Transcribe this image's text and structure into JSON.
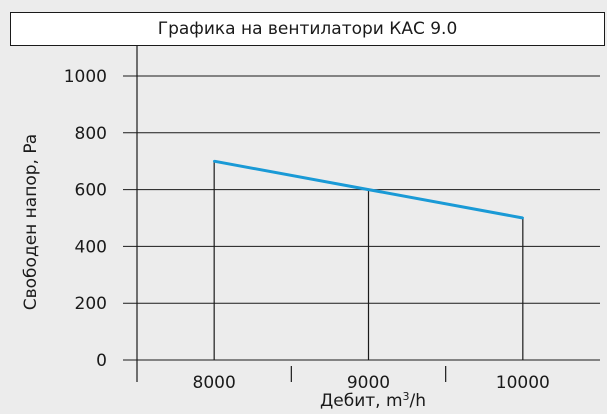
{
  "chart_data": {
    "type": "line",
    "title": "Графика на вентилатори КАС 9.0",
    "xlabel_main": "Дебит, m",
    "xlabel_sup": "3",
    "xlabel_unit": "/h",
    "ylabel": "Свободен напор, Pa",
    "x_ticks": [
      "8000",
      "9000",
      "10000"
    ],
    "y_ticks": [
      "0",
      "200",
      "400",
      "600",
      "800",
      "1000"
    ],
    "xlim": [
      7500,
      10500
    ],
    "ylim": [
      0,
      1000
    ],
    "series": [
      {
        "x": [
          8000,
          9000,
          10000
        ],
        "y": [
          700,
          600,
          500
        ]
      }
    ],
    "grid": "horizontal",
    "colors": {
      "line": "#1a9ad6",
      "panel": "#ececec",
      "axis": "#1a1a1a"
    }
  }
}
